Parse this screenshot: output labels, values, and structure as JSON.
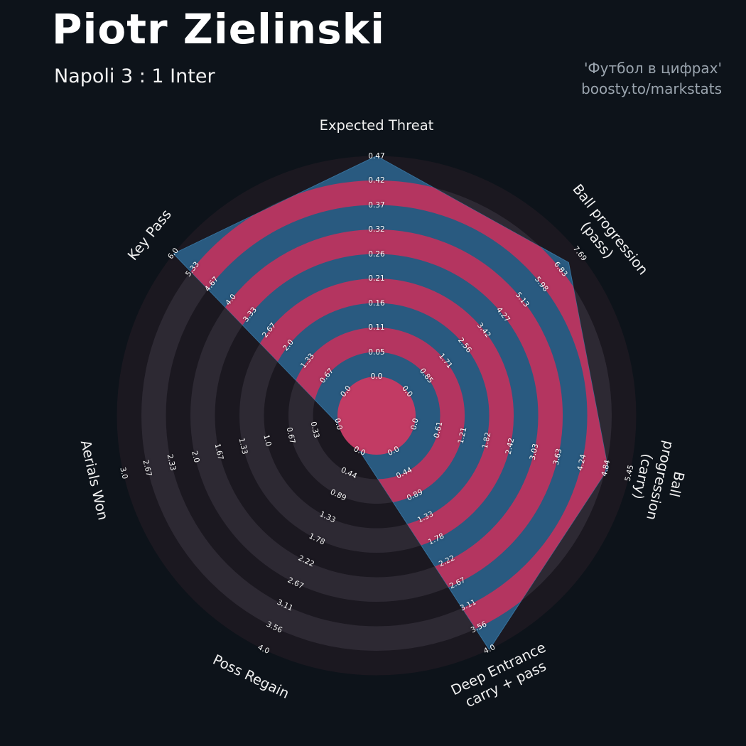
{
  "header": {
    "title": "Piotr Zielinski",
    "subtitle": "Napoli 3 : 1 Inter",
    "credit_line1": "'Футбол в цифрах'",
    "credit_line2": "boosty.to/markstats"
  },
  "colors": {
    "background": "#0d131a",
    "ring_dark": "#1b1820",
    "ring_light": "#2d2933",
    "radar_fill": "#295a80",
    "radar_edge": "#36719c",
    "ring_inside_crimson": "#b43560",
    "center_disc": "#c23b64",
    "tick_text": "#ffffff",
    "param_text": "#f0f0f0",
    "credit_text": "#9aa4ae"
  },
  "chart_data": {
    "type": "radar",
    "title": "Piotr Zielinski",
    "subtitle": "Napoli 3 : 1 Inter",
    "rings": 9,
    "params": [
      {
        "label": "Expected Threat",
        "value": 0.47,
        "min": 0,
        "max": 0.47,
        "ticks": [
          "0.0",
          "0.05",
          "0.11",
          "0.16",
          "0.21",
          "0.26",
          "0.32",
          "0.37",
          "0.42",
          "0.47"
        ]
      },
      {
        "label": "Ball progression (pass)",
        "value": 7.2,
        "min": 0,
        "max": 7.69,
        "ticks": [
          "0.0",
          "0.85",
          "1.71",
          "2.56",
          "3.42",
          "4.27",
          "5.13",
          "5.98",
          "6.83",
          "7.69"
        ]
      },
      {
        "label": "Ball progression (carry)",
        "value": 4.9,
        "min": 0,
        "max": 5.45,
        "ticks": [
          "0.0",
          "0.61",
          "1.21",
          "1.82",
          "2.42",
          "3.03",
          "3.63",
          "4.24",
          "4.84",
          "5.45"
        ]
      },
      {
        "label": "Deep Entrance\ncarry + pass",
        "value": 4.0,
        "min": 0,
        "max": 4.0,
        "ticks": [
          "0.0",
          "0.44",
          "0.89",
          "1.33",
          "1.78",
          "2.22",
          "2.67",
          "3.11",
          "3.56",
          "4.0"
        ]
      },
      {
        "label": "Poss Regain",
        "value": 0.0,
        "min": 0,
        "max": 4.0,
        "ticks": [
          "0.0",
          "0.44",
          "0.89",
          "1.33",
          "1.78",
          "2.22",
          "2.67",
          "3.11",
          "3.56",
          "4.0"
        ]
      },
      {
        "label": "Aerials Won",
        "value": 0.0,
        "min": 0,
        "max": 3.0,
        "ticks": [
          "0.0",
          "0.33",
          "0.67",
          "1.0",
          "1.33",
          "1.67",
          "2.0",
          "2.33",
          "2.67",
          "3.0"
        ]
      },
      {
        "label": "Key Pass",
        "value": 6.0,
        "min": 0,
        "max": 6.0,
        "ticks": [
          "0.0",
          "0.67",
          "1.33",
          "2.0",
          "2.67",
          "3.33",
          "4.0",
          "4.67",
          "5.33",
          "6.0"
        ]
      }
    ]
  }
}
